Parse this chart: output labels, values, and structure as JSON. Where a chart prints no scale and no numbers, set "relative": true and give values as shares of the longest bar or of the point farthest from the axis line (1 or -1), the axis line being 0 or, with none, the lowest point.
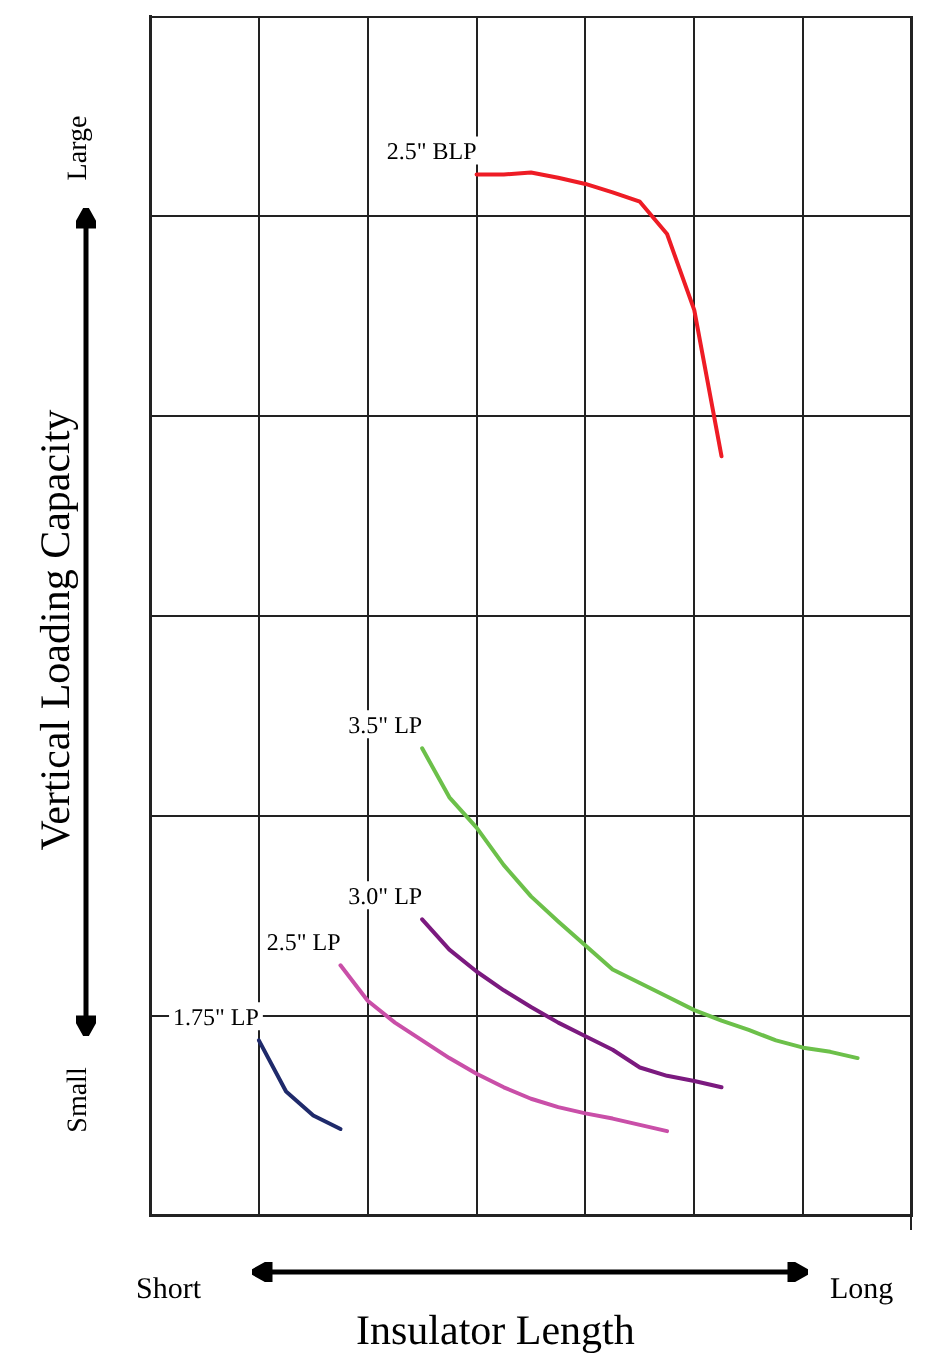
{
  "chart_data": {
    "type": "line",
    "relative": true,
    "xlabel": "Insulator Length",
    "ylabel": "Vertical Loading Capacity",
    "annotations": [
      "Large",
      "Small",
      "Short",
      "Long"
    ],
    "categories": [
      null,
      null,
      null,
      null,
      null,
      null,
      null,
      null,
      null,
      null,
      null,
      null,
      null,
      null,
      null,
      null,
      null,
      null,
      null,
      null,
      null,
      null,
      null,
      null,
      null,
      null,
      null,
      null,
      null
    ],
    "grid": true,
    "legend": false,
    "marker": "none",
    "line_style": "solid",
    "series": [
      {
        "name": "2.5\" BLP",
        "color": "#ee1c25",
        "values": [
          null,
          null,
          null,
          null,
          null,
          null,
          null,
          null,
          null,
          null,
          null,
          null,
          0.998,
          0.998,
          1,
          0.995,
          0.989,
          0.981,
          0.972,
          0.941,
          0.868,
          0.728,
          null,
          null,
          null,
          null,
          null,
          null,
          null
        ]
      },
      {
        "name": "3.5\" LP",
        "color": "#6cc04a",
        "values": [
          null,
          null,
          null,
          null,
          null,
          null,
          null,
          null,
          null,
          null,
          0.448,
          0.401,
          0.372,
          0.336,
          0.306,
          0.282,
          0.259,
          0.236,
          0.223,
          0.21,
          0.197,
          0.187,
          0.178,
          0.168,
          0.161,
          0.157,
          0.151,
          null,
          null
        ]
      },
      {
        "name": "3.0\" LP",
        "color": "#7b1a7f",
        "values": [
          null,
          null,
          null,
          null,
          null,
          null,
          null,
          null,
          null,
          null,
          0.284,
          0.255,
          0.234,
          0.216,
          0.2,
          0.185,
          0.172,
          0.159,
          0.142,
          0.134,
          0.129,
          0.123,
          null,
          null,
          null,
          null,
          null,
          null,
          null
        ]
      },
      {
        "name": "2.5\" LP",
        "color": "#c94fa8",
        "values": [
          null,
          null,
          null,
          null,
          null,
          null,
          null,
          0.24,
          0.206,
          0.185,
          0.168,
          0.151,
          0.136,
          0.123,
          0.112,
          0.104,
          0.098,
          0.093,
          0.087,
          0.081,
          null,
          null,
          null,
          null,
          null,
          null,
          null,
          null,
          null
        ]
      },
      {
        "name": "1.75\" LP",
        "color": "#1f2a6b",
        "values": [
          null,
          null,
          null,
          null,
          0.168,
          0.119,
          0.096,
          0.083,
          null,
          null,
          null,
          null,
          null,
          null,
          null,
          null,
          null,
          null,
          null,
          null,
          null,
          null,
          null,
          null,
          null,
          null,
          null,
          null,
          null
        ]
      }
    ]
  }
}
